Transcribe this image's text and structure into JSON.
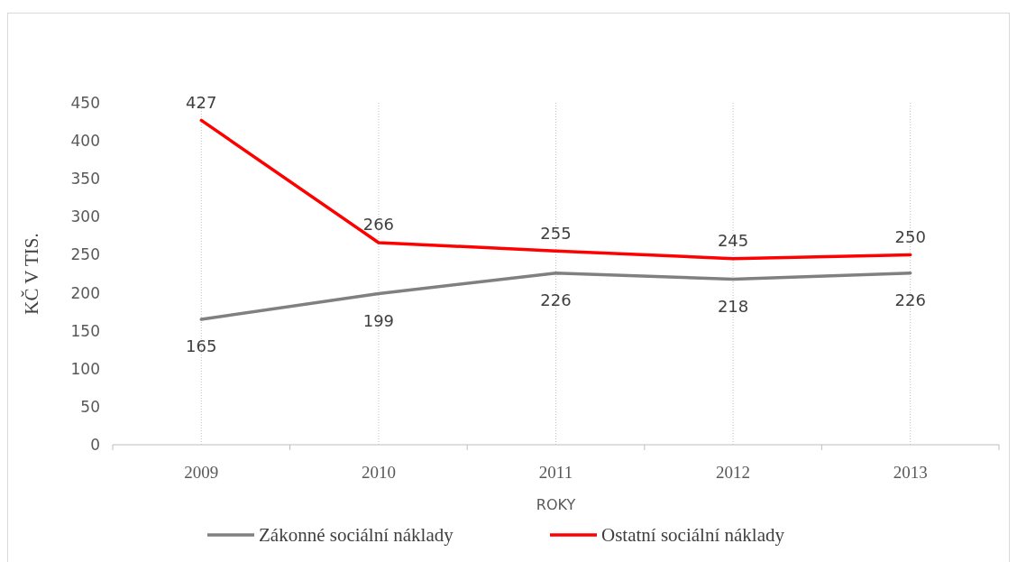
{
  "chart_data": {
    "type": "line",
    "xlabel": "ROKY",
    "ylabel": "KČ V TIS.",
    "categories": [
      "2009",
      "2010",
      "2011",
      "2012",
      "2013"
    ],
    "series": [
      {
        "name": "Zákonné sociální náklady",
        "color": "#808080",
        "values": [
          165,
          199,
          226,
          218,
          226
        ]
      },
      {
        "name": "Ostatní sociální náklady",
        "color": "#ff0000",
        "values": [
          427,
          266,
          255,
          245,
          250
        ]
      }
    ],
    "ylim": [
      0,
      450
    ],
    "yticks": [
      0,
      50,
      100,
      150,
      200,
      250,
      300,
      350,
      400,
      450
    ],
    "grid": "x",
    "legend": "bottom",
    "data_labels": true,
    "marker": "none",
    "line_style": "solid"
  }
}
